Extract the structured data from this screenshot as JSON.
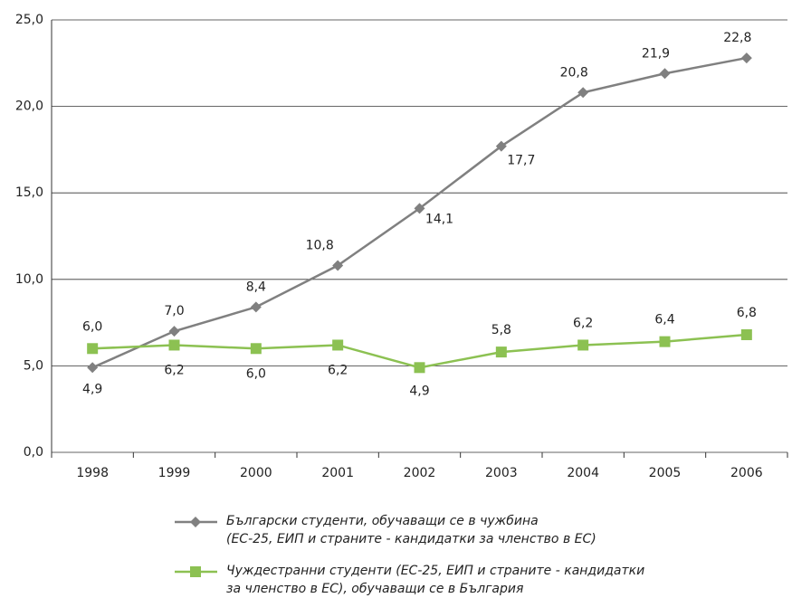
{
  "chart_data": {
    "type": "line",
    "categories": [
      "1998",
      "1999",
      "2000",
      "2001",
      "2002",
      "2003",
      "2004",
      "2005",
      "2006"
    ],
    "series": [
      {
        "name": "Български студенти, обучаващи се в чужбина\n(ЕС-25, ЕИП и страните - кандидатки за членство в ЕС)",
        "color": "#808080",
        "marker": "diamond",
        "values": [
          4.9,
          7.0,
          8.4,
          10.8,
          14.1,
          17.7,
          20.8,
          21.9,
          22.8
        ],
        "value_labels": [
          "4,9",
          "7,0",
          "8,4",
          "10,8",
          "14,1",
          "17,7",
          "20,8",
          "21,9",
          "22,8"
        ]
      },
      {
        "name": "Чуждестранни студенти (ЕС-25, ЕИП и страните - кандидатки\nза членство в ЕС), обучаващи се в България",
        "color": "#8cc152",
        "marker": "square",
        "values": [
          6.0,
          6.2,
          6.0,
          6.2,
          4.9,
          5.8,
          6.2,
          6.4,
          6.8
        ],
        "value_labels": [
          "6,0",
          "6,2",
          "6,0",
          "6,2",
          "4,9",
          "5,8",
          "6,2",
          "6,4",
          "6,8"
        ]
      }
    ],
    "ylim": [
      0,
      25
    ],
    "yticks": [
      {
        "value": 0,
        "label": "0,0"
      },
      {
        "value": 5,
        "label": "5,0"
      },
      {
        "value": 10,
        "label": "10,0"
      },
      {
        "value": 15,
        "label": "15,0"
      },
      {
        "value": 20,
        "label": "20,0"
      },
      {
        "value": 25,
        "label": "25,0"
      }
    ],
    "grid": true
  }
}
